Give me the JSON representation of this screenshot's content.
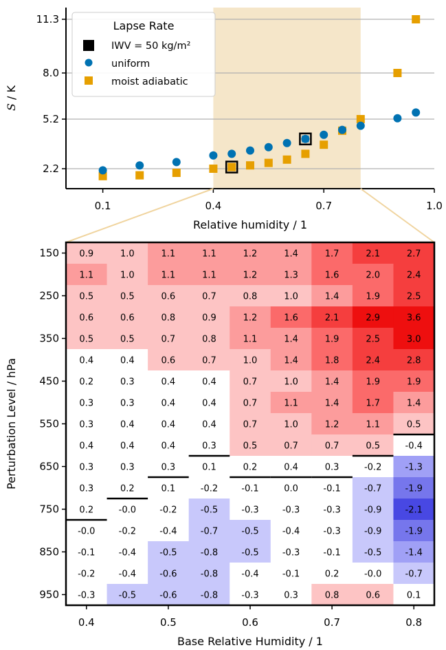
{
  "chart_data": [
    {
      "type": "scatter",
      "xlabel": "Relative humidity / 1",
      "ylabel": "S / K",
      "xlim": [
        0.0,
        1.0
      ],
      "yticks": [
        2.2,
        5.2,
        8.0,
        11.3
      ],
      "ytick_labels": [
        "2.2",
        "5.2",
        "8.0",
        "11.3"
      ],
      "xticks": [
        0.1,
        0.4,
        0.7,
        1.0
      ],
      "xtick_labels": [
        "0.1",
        "0.4",
        "0.7",
        "1.0"
      ],
      "highlight_band": [
        0.4,
        0.8
      ],
      "grid": "horizontal at y ticks",
      "legend": {
        "title": "Lapse Rate",
        "placement": "top-left",
        "entries": [
          "IWV = 50 kg/m²",
          "uniform",
          "moist adiabatic"
        ]
      },
      "series": [
        {
          "name": "uniform",
          "color": "#0072B2",
          "marker": "circle",
          "x": [
            0.1,
            0.2,
            0.3,
            0.4,
            0.45,
            0.5,
            0.55,
            0.6,
            0.65,
            0.7,
            0.75,
            0.8,
            0.9,
            0.95
          ],
          "y": [
            2.1,
            2.4,
            2.6,
            3.0,
            3.1,
            3.3,
            3.5,
            3.75,
            4.0,
            4.25,
            4.55,
            4.8,
            5.25,
            5.6
          ]
        },
        {
          "name": "moist adiabatic",
          "color": "#E69F00",
          "marker": "square",
          "x": [
            0.1,
            0.2,
            0.3,
            0.4,
            0.45,
            0.5,
            0.55,
            0.6,
            0.65,
            0.7,
            0.75,
            0.8,
            0.9,
            0.95
          ],
          "y": [
            1.75,
            1.8,
            1.95,
            2.2,
            2.3,
            2.4,
            2.55,
            2.75,
            3.1,
            3.65,
            4.5,
            5.2,
            8.0,
            11.3
          ]
        },
        {
          "name": "IWV = 50 kg/m²",
          "marker": "hollow square (black edge)",
          "points": [
            {
              "x": 0.45,
              "y": 2.3,
              "fill": "#E69F00"
            },
            {
              "x": 0.65,
              "y": 4.0,
              "fill": "#0072B2"
            }
          ]
        }
      ]
    },
    {
      "type": "heatmap",
      "xlabel": "Base Relative Humidity / 1",
      "ylabel": "Perturbation Level / hPa",
      "x_categories": [
        "0.4",
        "0.45",
        "0.5",
        "0.55",
        "0.6",
        "0.65",
        "0.7",
        "0.75",
        "0.8"
      ],
      "xtick_labels": [
        "0.4",
        "0.5",
        "0.6",
        "0.7",
        "0.8"
      ],
      "y_categories": [
        "150",
        "200",
        "250",
        "300",
        "350",
        "400",
        "450",
        "500",
        "550",
        "600",
        "650",
        "700",
        "750",
        "800",
        "850",
        "900",
        "950"
      ],
      "ytick_labels": [
        "150",
        "250",
        "350",
        "450",
        "550",
        "650",
        "750",
        "850",
        "950"
      ],
      "values": [
        [
          "0.9",
          "1.0",
          "1.1",
          "1.1",
          "1.2",
          "1.4",
          "1.7",
          "2.1",
          "2.7"
        ],
        [
          "1.1",
          "1.0",
          "1.1",
          "1.1",
          "1.2",
          "1.3",
          "1.6",
          "2.0",
          "2.4"
        ],
        [
          "0.5",
          "0.5",
          "0.6",
          "0.7",
          "0.8",
          "1.0",
          "1.4",
          "1.9",
          "2.5"
        ],
        [
          "0.6",
          "0.6",
          "0.8",
          "0.9",
          "1.2",
          "1.6",
          "2.1",
          "2.9",
          "3.6"
        ],
        [
          "0.5",
          "0.5",
          "0.7",
          "0.8",
          "1.1",
          "1.4",
          "1.9",
          "2.5",
          "3.0"
        ],
        [
          "0.4",
          "0.4",
          "0.6",
          "0.7",
          "1.0",
          "1.4",
          "1.8",
          "2.4",
          "2.8"
        ],
        [
          "0.2",
          "0.3",
          "0.4",
          "0.4",
          "0.7",
          "1.0",
          "1.4",
          "1.9",
          "1.9"
        ],
        [
          "0.3",
          "0.3",
          "0.4",
          "0.4",
          "0.7",
          "1.1",
          "1.4",
          "1.7",
          "1.4"
        ],
        [
          "0.3",
          "0.4",
          "0.4",
          "0.4",
          "0.7",
          "1.0",
          "1.2",
          "1.1",
          "0.5"
        ],
        [
          "0.4",
          "0.4",
          "0.4",
          "0.3",
          "0.5",
          "0.7",
          "0.7",
          "0.5",
          "-0.4"
        ],
        [
          "0.3",
          "0.3",
          "0.3",
          "0.1",
          "0.2",
          "0.4",
          "0.3",
          "-0.2",
          "-1.3"
        ],
        [
          "0.3",
          "0.2",
          "0.1",
          "-0.2",
          "-0.1",
          "0.0",
          "-0.1",
          "-0.7",
          "-1.9"
        ],
        [
          "0.2",
          "-0.0",
          "-0.2",
          "-0.5",
          "-0.3",
          "-0.3",
          "-0.3",
          "-0.9",
          "-2.1"
        ],
        [
          "-0.0",
          "-0.2",
          "-0.4",
          "-0.7",
          "-0.5",
          "-0.4",
          "-0.3",
          "-0.9",
          "-1.9"
        ],
        [
          "-0.1",
          "-0.4",
          "-0.5",
          "-0.8",
          "-0.5",
          "-0.3",
          "-0.1",
          "-0.5",
          "-1.4"
        ],
        [
          "-0.2",
          "-0.4",
          "-0.6",
          "-0.8",
          "-0.4",
          "-0.1",
          "0.2",
          "-0.0",
          "-0.7"
        ],
        [
          "-0.3",
          "-0.5",
          "-0.6",
          "-0.8",
          "-0.3",
          "0.3",
          "0.8",
          "0.6",
          "0.1"
        ]
      ],
      "tropopause_marker_rows": [
        13,
        12,
        11,
        10,
        11,
        11,
        11,
        10,
        9
      ],
      "colormap": "diverging blue-white-red, binned"
    }
  ]
}
